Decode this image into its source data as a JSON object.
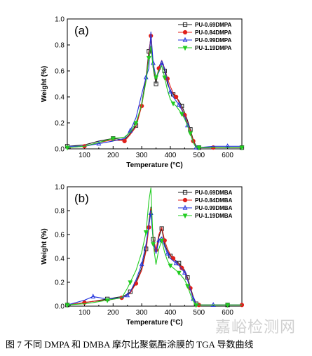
{
  "caption": "图 7  不同 DMPA 和 DMBA 摩尔比聚氨酯涂膜的 TGA 导数曲线",
  "watermark": "嘉峪检测网",
  "chart_data": [
    {
      "type": "line",
      "panel_label": "(a)",
      "xlabel": "Temperature (°C)",
      "ylabel": "Weight (%)",
      "xlim": [
        40,
        650
      ],
      "ylim": [
        0.0,
        1.0
      ],
      "xticks": [
        100,
        200,
        300,
        400,
        500,
        600
      ],
      "yticks": [
        0.0,
        0.2,
        0.4,
        0.6,
        0.8,
        1.0
      ],
      "legend_position": "top-right",
      "x": [
        40,
        100,
        150,
        200,
        240,
        260,
        280,
        300,
        315,
        325,
        332,
        340,
        350,
        360,
        370,
        380,
        390,
        400,
        410,
        420,
        430,
        440,
        450,
        460,
        470,
        480,
        490,
        500,
        550,
        600,
        650
      ],
      "series": [
        {
          "name": "PU-0.69DMPA",
          "color": "#222222",
          "marker": "square",
          "values": [
            0.02,
            0.03,
            0.06,
            0.08,
            0.07,
            0.12,
            0.18,
            0.35,
            0.55,
            0.75,
            0.85,
            0.62,
            0.5,
            0.63,
            0.68,
            0.6,
            0.5,
            0.45,
            0.42,
            0.4,
            0.37,
            0.33,
            0.28,
            0.22,
            0.15,
            0.07,
            0.02,
            0.01,
            0.01,
            0.01,
            0.01
          ]
        },
        {
          "name": "PU-0.84DMPA",
          "color": "#e0201b",
          "marker": "circle",
          "values": [
            0.01,
            0.02,
            0.05,
            0.07,
            0.06,
            0.11,
            0.17,
            0.33,
            0.53,
            0.72,
            0.87,
            0.64,
            0.53,
            0.62,
            0.68,
            0.62,
            0.54,
            0.48,
            0.43,
            0.4,
            0.36,
            0.31,
            0.26,
            0.2,
            0.14,
            0.06,
            0.01,
            0.01,
            0.01,
            0.01,
            0.01
          ]
        },
        {
          "name": "PU-0.99DMPA",
          "color": "#2233dd",
          "marker": "triangle",
          "values": [
            0.02,
            0.02,
            0.04,
            0.06,
            0.08,
            0.14,
            0.24,
            0.42,
            0.55,
            0.62,
            0.9,
            0.66,
            0.55,
            0.59,
            0.66,
            0.62,
            0.52,
            0.44,
            0.4,
            0.37,
            0.34,
            0.3,
            0.25,
            0.18,
            0.12,
            0.05,
            0.01,
            0.01,
            0.02,
            0.02,
            0.02
          ]
        },
        {
          "name": "PU-1.19DMPA",
          "color": "#22cc22",
          "marker": "triangle-down",
          "values": [
            0.01,
            0.02,
            0.05,
            0.08,
            0.09,
            0.13,
            0.2,
            0.34,
            0.52,
            0.7,
            0.79,
            0.62,
            0.55,
            0.6,
            0.64,
            0.55,
            0.45,
            0.38,
            0.35,
            0.33,
            0.3,
            0.27,
            0.23,
            0.18,
            0.12,
            0.05,
            0.01,
            0.01,
            0.01,
            0.01,
            0.01
          ]
        }
      ]
    },
    {
      "type": "line",
      "panel_label": "(b)",
      "xlabel": "Temperature (°C)",
      "ylabel": "Weight (%)",
      "xlim": [
        40,
        650
      ],
      "ylim": [
        0.0,
        1.0
      ],
      "xticks": [
        100,
        200,
        300,
        400,
        500,
        600
      ],
      "yticks": [
        0.0,
        0.2,
        0.4,
        0.6,
        0.8,
        1.0
      ],
      "legend_position": "top-right",
      "x": [
        40,
        100,
        130,
        180,
        230,
        250,
        260,
        280,
        300,
        315,
        325,
        332,
        340,
        350,
        360,
        370,
        380,
        390,
        400,
        410,
        420,
        430,
        440,
        450,
        460,
        470,
        480,
        490,
        500,
        550,
        600,
        650
      ],
      "series": [
        {
          "name": "PU-0.69DMBA",
          "color": "#222222",
          "marker": "square",
          "values": [
            0.01,
            0.03,
            0.04,
            0.06,
            0.08,
            0.1,
            0.12,
            0.2,
            0.32,
            0.48,
            0.7,
            0.83,
            0.56,
            0.45,
            0.58,
            0.65,
            0.52,
            0.46,
            0.42,
            0.4,
            0.38,
            0.36,
            0.33,
            0.3,
            0.24,
            0.16,
            0.08,
            0.02,
            0.01,
            0.01,
            0.01,
            0.01
          ]
        },
        {
          "name": "PU-0.84DMBA",
          "color": "#e0201b",
          "marker": "circle",
          "values": [
            0.01,
            0.03,
            0.04,
            0.05,
            0.07,
            0.09,
            0.11,
            0.19,
            0.3,
            0.46,
            0.66,
            0.82,
            0.58,
            0.47,
            0.6,
            0.66,
            0.55,
            0.48,
            0.43,
            0.4,
            0.37,
            0.35,
            0.32,
            0.29,
            0.23,
            0.15,
            0.07,
            0.02,
            0.01,
            0.01,
            0.01,
            0.01
          ]
        },
        {
          "name": "PU-0.99DMBA",
          "color": "#2233dd",
          "marker": "triangle",
          "values": [
            0.01,
            0.05,
            0.08,
            0.06,
            0.07,
            0.09,
            0.12,
            0.22,
            0.35,
            0.52,
            0.68,
            0.78,
            0.55,
            0.44,
            0.55,
            0.58,
            0.5,
            0.44,
            0.4,
            0.38,
            0.36,
            0.34,
            0.31,
            0.28,
            0.22,
            0.14,
            0.06,
            0.02,
            0.01,
            0.01,
            0.01,
            0.01
          ]
        },
        {
          "name": "PU-1.19DMBA",
          "color": "#22cc22",
          "marker": "triangle-down",
          "values": [
            0.01,
            0.02,
            0.03,
            0.05,
            0.07,
            0.15,
            0.2,
            0.3,
            0.45,
            0.62,
            0.88,
            0.99,
            0.52,
            0.35,
            0.48,
            0.55,
            0.45,
            0.38,
            0.34,
            0.32,
            0.3,
            0.28,
            0.25,
            0.22,
            0.17,
            0.1,
            0.04,
            0.01,
            0.01,
            0.01,
            0.01,
            0.01
          ]
        }
      ]
    }
  ]
}
